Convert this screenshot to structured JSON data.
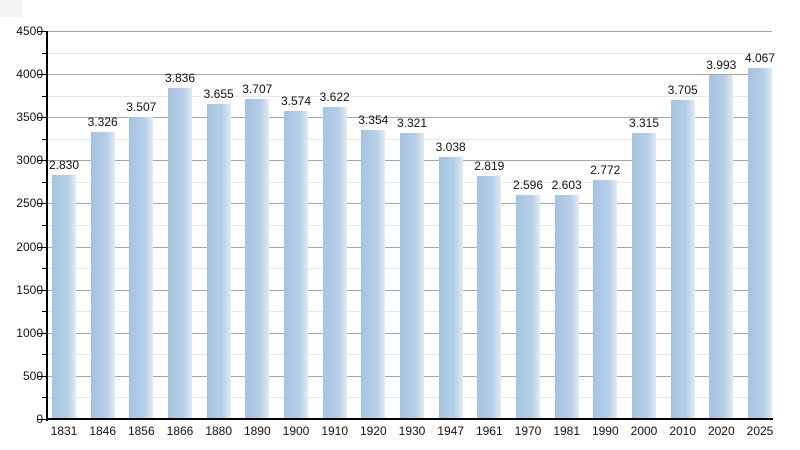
{
  "chart_data": {
    "type": "bar",
    "title": "",
    "xlabel": "",
    "ylabel": "",
    "categories": [
      "1831",
      "1846",
      "1856",
      "1866",
      "1880",
      "1890",
      "1900",
      "1910",
      "1920",
      "1930",
      "1947",
      "1961",
      "1970",
      "1981",
      "1990",
      "2000",
      "2010",
      "2020",
      "2025"
    ],
    "values": [
      2830,
      3326,
      3507,
      3836,
      3655,
      3707,
      3574,
      3622,
      3354,
      3321,
      3038,
      2819,
      2596,
      2603,
      2772,
      3315,
      3705,
      3993,
      4067
    ],
    "value_labels": [
      "2.830",
      "3.326",
      "3.507",
      "3.836",
      "3.655",
      "3.707",
      "3.574",
      "3.622",
      "3.354",
      "3.321",
      "3.038",
      "2.819",
      "2.596",
      "2.603",
      "2.772",
      "3.315",
      "3.705",
      "3.993",
      "4.067"
    ],
    "ylim": [
      0,
      4500
    ],
    "y_major_ticks": [
      0,
      500,
      1000,
      1500,
      2000,
      2500,
      3000,
      3500,
      4000,
      4500
    ],
    "y_minor_step": 250,
    "grid": "on",
    "legend": "none",
    "colors": {
      "bar_main": "#a6c3e0",
      "bar_mid": "#b6cfe8",
      "bar_edge": "#e0ebf6",
      "grid_major": "#a6a6a6",
      "grid_minor": "#e7e7e7",
      "axis": "#000000",
      "text": "#111111",
      "corner_artifact": "#f3f3f3"
    }
  }
}
